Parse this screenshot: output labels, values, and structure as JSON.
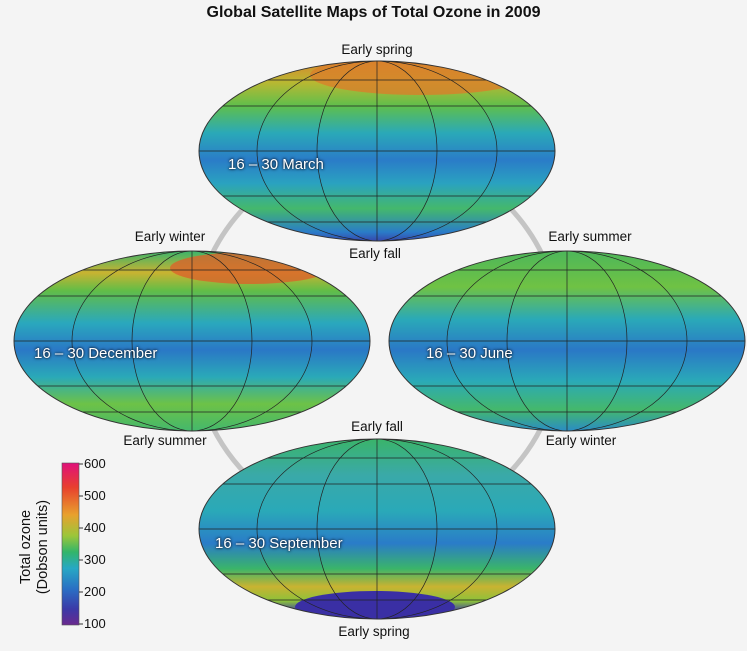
{
  "title": "Global Satellite Maps of Total Ozone in 2009",
  "maps": {
    "march": {
      "date": "16 – 30 March",
      "top_label": "Early spring",
      "bottom_label": "Early fall"
    },
    "december": {
      "date": "16 – 30 December",
      "top_label": "Early winter",
      "bottom_label": "Early summer"
    },
    "june": {
      "date": "16 – 30 June",
      "top_label": "Early summer",
      "bottom_label": "Early winter"
    },
    "september": {
      "date": "16 – 30 September",
      "top_label": "Early fall",
      "bottom_label": "Early spring"
    }
  },
  "colorbar": {
    "label_line1": "Total ozone",
    "label_line2": "(Dobson units)",
    "ticks": [
      "600",
      "500",
      "400",
      "300",
      "200",
      "100"
    ],
    "colors": [
      "#e0107a",
      "#e8402e",
      "#e8a12e",
      "#9bc63a",
      "#32b56a",
      "#27a8c4",
      "#2a6ec4",
      "#3b3aa8",
      "#6a2a8e"
    ]
  }
}
